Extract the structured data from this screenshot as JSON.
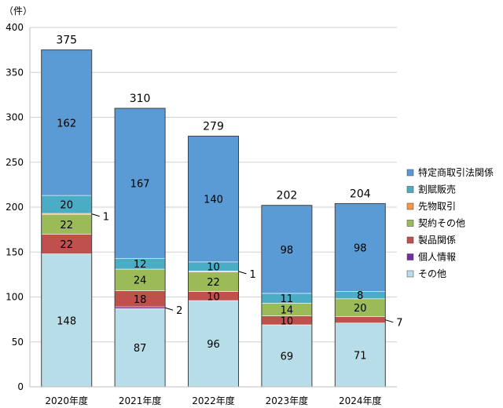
{
  "chart_data": {
    "type": "bar",
    "stacked": true,
    "unit_label": "（件）",
    "categories": [
      "2020年度",
      "2021年度",
      "2022年度",
      "2023年度",
      "2024年度"
    ],
    "ylim": [
      0,
      400
    ],
    "yticks": [
      0,
      50,
      100,
      150,
      200,
      250,
      300,
      350,
      400
    ],
    "grid": true,
    "legend_position": "right",
    "totals": [
      375,
      310,
      279,
      202,
      204
    ],
    "series": [
      {
        "name": "その他",
        "color": "#B7DDE8",
        "values": [
          148,
          87,
          96,
          69,
          71
        ]
      },
      {
        "name": "個人情報",
        "color": "#7030A0",
        "values": [
          0,
          2,
          0,
          0,
          0
        ]
      },
      {
        "name": "製品関係",
        "color": "#C0504D",
        "values": [
          22,
          18,
          10,
          10,
          7
        ]
      },
      {
        "name": "契約その他",
        "color": "#9BBB59",
        "values": [
          22,
          24,
          22,
          14,
          20
        ]
      },
      {
        "name": "先物取引",
        "color": "#F79646",
        "values": [
          1,
          0,
          1,
          0,
          0
        ]
      },
      {
        "name": "割賦販売",
        "color": "#4BACC6",
        "values": [
          20,
          12,
          10,
          11,
          8
        ]
      },
      {
        "name": "特定商取引法関係",
        "color": "#5B9BD5",
        "values": [
          162,
          167,
          140,
          98,
          98
        ]
      }
    ],
    "label_text": [
      [
        "148",
        "",
        "22",
        "22",
        "",
        "20",
        "162"
      ],
      [
        "87",
        "",
        "18",
        "24",
        "",
        "12",
        "167"
      ],
      [
        "96",
        "",
        "10",
        "22",
        "",
        "10",
        "140"
      ],
      [
        "69",
        "",
        "10",
        "14",
        "",
        "11",
        "98"
      ],
      [
        "71",
        "",
        "",
        "20",
        "",
        "8",
        "98"
      ]
    ],
    "callouts": [
      {
        "category_index": 0,
        "series_index": 4,
        "text": "1"
      },
      {
        "category_index": 1,
        "series_index": 1,
        "text": "2"
      },
      {
        "category_index": 2,
        "series_index": 4,
        "text": "1"
      },
      {
        "category_index": 4,
        "series_index": 2,
        "text": "7"
      }
    ],
    "legend_order": [
      6,
      5,
      4,
      3,
      2,
      1,
      0
    ]
  }
}
